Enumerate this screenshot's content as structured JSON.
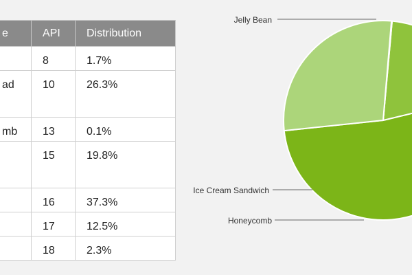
{
  "table": {
    "headers": [
      "e",
      "API",
      "Distribution"
    ],
    "rows": [
      {
        "name": "",
        "api": "8",
        "distribution": "1.7%"
      },
      {
        "name": "ad",
        "api": "10",
        "distribution": "26.3%"
      },
      {
        "name": "mb",
        "api": "13",
        "distribution": "0.1%"
      },
      {
        "name": "",
        "api": "15",
        "distribution": "19.8%"
      },
      {
        "name": "",
        "api": "16",
        "distribution": "37.3%"
      },
      {
        "name": "",
        "api": "17",
        "distribution": "12.5%"
      },
      {
        "name": "",
        "api": "18",
        "distribution": "2.3%"
      }
    ]
  },
  "chart_data": {
    "type": "pie",
    "title": "",
    "legend": "leader-line labels",
    "slices": [
      {
        "label": "Jelly Bean",
        "value": 52.1,
        "color": "#7cb518"
      },
      {
        "label": "Ice Cream Sandwich",
        "value": 19.8,
        "color": "#8fc33c"
      },
      {
        "label": "Honeycomb",
        "value": 0.1,
        "color": "#9ccd52"
      },
      {
        "label": "",
        "value": 28.0,
        "color": "#acd57a"
      }
    ]
  }
}
